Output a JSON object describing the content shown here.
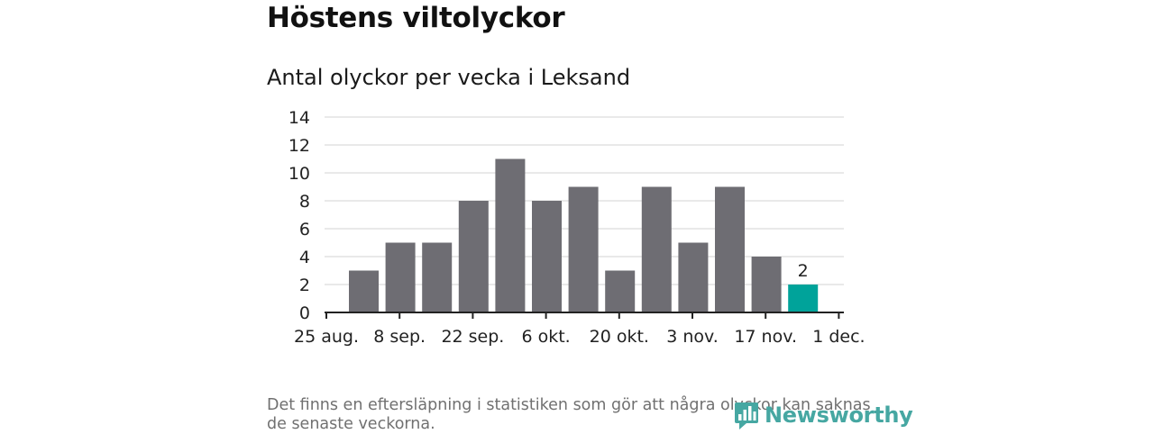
{
  "header": {
    "title": "Höstens viltolyckor",
    "subtitle": "Antal olyckor per vecka i Leksand"
  },
  "footnote": "Det finns en eftersläpning i statistiken som gör att några olyckor kan saknas de senaste veckorna.",
  "brand": {
    "name": "Newsworthy",
    "icon": "newsworthy-logo-icon",
    "color": "#46a7a2"
  },
  "chart_data": {
    "type": "bar",
    "title": "Antal olyckor per vecka i Leksand",
    "xlabel": "",
    "ylabel": "",
    "ylim": [
      0,
      14
    ],
    "yticks": [
      0,
      2,
      4,
      6,
      8,
      10,
      12,
      14
    ],
    "grid": true,
    "x_ticks": [
      "25 aug.",
      "8 sep.",
      "22 sep.",
      "6 okt.",
      "20 okt.",
      "3 nov.",
      "17 nov.",
      "1 dec."
    ],
    "values": [
      3,
      5,
      5,
      8,
      11,
      8,
      9,
      3,
      9,
      5,
      9,
      4,
      2
    ],
    "highlight_index": 12,
    "data_labels": [
      {
        "index": 12,
        "text": "2"
      }
    ],
    "colors": {
      "bar": "#6e6d73",
      "highlight": "#00a39a",
      "grid": "#dcdcdc",
      "axis": "#222222"
    }
  }
}
